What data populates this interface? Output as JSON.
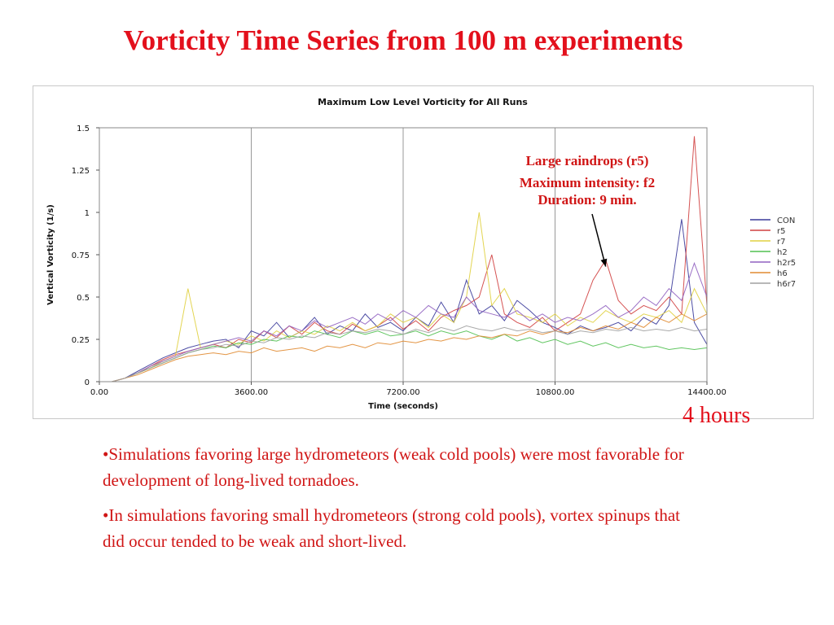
{
  "slide": {
    "title": "Vorticity Time Series from 100 m experiments",
    "hours_label": "4 hours",
    "bullets": [
      "•Simulations favoring large hydrometeors (weak cold pools) were most favorable for development of long-lived tornadoes.",
      "•In simulations favoring small hydrometeors (strong cold pools), vortex spinups that did occur tended to be weak and short-lived."
    ]
  },
  "chart_data": {
    "type": "line",
    "title": "Maximum Low Level Vorticity for All Runs",
    "xlabel": "Time (seconds)",
    "ylabel": "Vertical Vorticity (1/s)",
    "xlim": [
      0,
      14400
    ],
    "ylim": [
      0,
      1.5
    ],
    "x_ticks": [
      "0.00",
      "3600.00",
      "7200.00",
      "10800.00",
      "14400.00"
    ],
    "y_ticks": [
      "0",
      "0.25",
      "0.5",
      "0.75",
      "1",
      "1.25",
      "1.5"
    ],
    "grid": "vertical",
    "legend_position": "right",
    "x": [
      0,
      300,
      600,
      900,
      1200,
      1500,
      1800,
      2100,
      2400,
      2700,
      3000,
      3300,
      3600,
      3900,
      4200,
      4500,
      4800,
      5100,
      5400,
      5700,
      6000,
      6300,
      6600,
      6900,
      7200,
      7500,
      7800,
      8100,
      8400,
      8700,
      9000,
      9300,
      9600,
      9900,
      10200,
      10500,
      10800,
      11100,
      11400,
      11700,
      12000,
      12300,
      12600,
      12900,
      13200,
      13500,
      13800,
      14100,
      14400
    ],
    "series": [
      {
        "name": "CON",
        "color": "#3a3a9a",
        "values": [
          0,
          0,
          0.02,
          0.06,
          0.1,
          0.14,
          0.17,
          0.2,
          0.22,
          0.24,
          0.25,
          0.2,
          0.3,
          0.27,
          0.35,
          0.26,
          0.3,
          0.38,
          0.28,
          0.33,
          0.3,
          0.4,
          0.32,
          0.35,
          0.3,
          0.38,
          0.33,
          0.47,
          0.35,
          0.6,
          0.4,
          0.45,
          0.36,
          0.48,
          0.42,
          0.35,
          0.32,
          0.28,
          0.33,
          0.3,
          0.32,
          0.35,
          0.3,
          0.38,
          0.34,
          0.45,
          0.96,
          0.35,
          0.22
        ]
      },
      {
        "name": "r5",
        "color": "#d04040",
        "values": [
          0,
          0,
          0.02,
          0.05,
          0.09,
          0.13,
          0.16,
          0.18,
          0.2,
          0.22,
          0.2,
          0.25,
          0.23,
          0.3,
          0.26,
          0.33,
          0.28,
          0.35,
          0.3,
          0.28,
          0.34,
          0.3,
          0.33,
          0.38,
          0.31,
          0.36,
          0.3,
          0.38,
          0.42,
          0.45,
          0.5,
          0.75,
          0.4,
          0.35,
          0.32,
          0.38,
          0.3,
          0.35,
          0.4,
          0.6,
          0.72,
          0.48,
          0.4,
          0.45,
          0.42,
          0.5,
          0.4,
          1.45,
          0.45
        ]
      },
      {
        "name": "r7",
        "color": "#e0d040",
        "values": [
          0,
          0,
          0.02,
          0.05,
          0.08,
          0.12,
          0.15,
          0.55,
          0.2,
          0.22,
          0.24,
          0.22,
          0.27,
          0.24,
          0.3,
          0.26,
          0.3,
          0.28,
          0.33,
          0.3,
          0.35,
          0.3,
          0.33,
          0.4,
          0.35,
          0.38,
          0.32,
          0.4,
          0.35,
          0.5,
          1.0,
          0.45,
          0.55,
          0.4,
          0.38,
          0.35,
          0.4,
          0.33,
          0.38,
          0.35,
          0.42,
          0.38,
          0.35,
          0.4,
          0.38,
          0.42,
          0.35,
          0.55,
          0.4
        ]
      },
      {
        "name": "h2",
        "color": "#50c050",
        "values": [
          0,
          0,
          0.02,
          0.05,
          0.08,
          0.11,
          0.14,
          0.17,
          0.19,
          0.21,
          0.2,
          0.23,
          0.22,
          0.25,
          0.24,
          0.27,
          0.26,
          0.3,
          0.28,
          0.26,
          0.3,
          0.28,
          0.3,
          0.27,
          0.28,
          0.3,
          0.27,
          0.3,
          0.28,
          0.3,
          0.27,
          0.25,
          0.28,
          0.24,
          0.26,
          0.23,
          0.25,
          0.22,
          0.24,
          0.21,
          0.23,
          0.2,
          0.22,
          0.2,
          0.21,
          0.19,
          0.2,
          0.19,
          0.2
        ]
      },
      {
        "name": "h2r5",
        "color": "#9060c0",
        "values": [
          0,
          0,
          0.02,
          0.05,
          0.09,
          0.12,
          0.15,
          0.18,
          0.2,
          0.22,
          0.24,
          0.26,
          0.24,
          0.3,
          0.27,
          0.33,
          0.3,
          0.36,
          0.32,
          0.35,
          0.38,
          0.34,
          0.4,
          0.36,
          0.42,
          0.38,
          0.45,
          0.4,
          0.38,
          0.5,
          0.42,
          0.4,
          0.38,
          0.42,
          0.36,
          0.4,
          0.35,
          0.38,
          0.36,
          0.4,
          0.45,
          0.38,
          0.42,
          0.5,
          0.45,
          0.55,
          0.48,
          0.7,
          0.5
        ]
      },
      {
        "name": "h6",
        "color": "#e08a30",
        "values": [
          0,
          0,
          0.02,
          0.04,
          0.07,
          0.1,
          0.13,
          0.15,
          0.16,
          0.17,
          0.16,
          0.18,
          0.17,
          0.2,
          0.18,
          0.19,
          0.2,
          0.18,
          0.21,
          0.2,
          0.22,
          0.2,
          0.23,
          0.22,
          0.24,
          0.23,
          0.25,
          0.24,
          0.26,
          0.25,
          0.27,
          0.26,
          0.28,
          0.27,
          0.3,
          0.28,
          0.3,
          0.29,
          0.32,
          0.3,
          0.33,
          0.31,
          0.35,
          0.32,
          0.38,
          0.35,
          0.4,
          0.36,
          0.4
        ]
      },
      {
        "name": "h6r7",
        "color": "#a0a0a0",
        "values": [
          0,
          0,
          0.02,
          0.05,
          0.08,
          0.11,
          0.14,
          0.17,
          0.19,
          0.2,
          0.22,
          0.21,
          0.24,
          0.23,
          0.26,
          0.25,
          0.27,
          0.26,
          0.29,
          0.28,
          0.3,
          0.29,
          0.31,
          0.3,
          0.28,
          0.31,
          0.29,
          0.32,
          0.3,
          0.33,
          0.31,
          0.3,
          0.32,
          0.3,
          0.31,
          0.29,
          0.3,
          0.28,
          0.3,
          0.29,
          0.31,
          0.3,
          0.32,
          0.3,
          0.31,
          0.3,
          0.32,
          0.3,
          0.31
        ]
      }
    ],
    "annotation": {
      "lines": [
        "Large raindrops (r5)",
        "Maximum intensity: f2",
        "Duration: 9 min."
      ],
      "points_to": {
        "x": 12000,
        "y": 0.68
      }
    }
  }
}
